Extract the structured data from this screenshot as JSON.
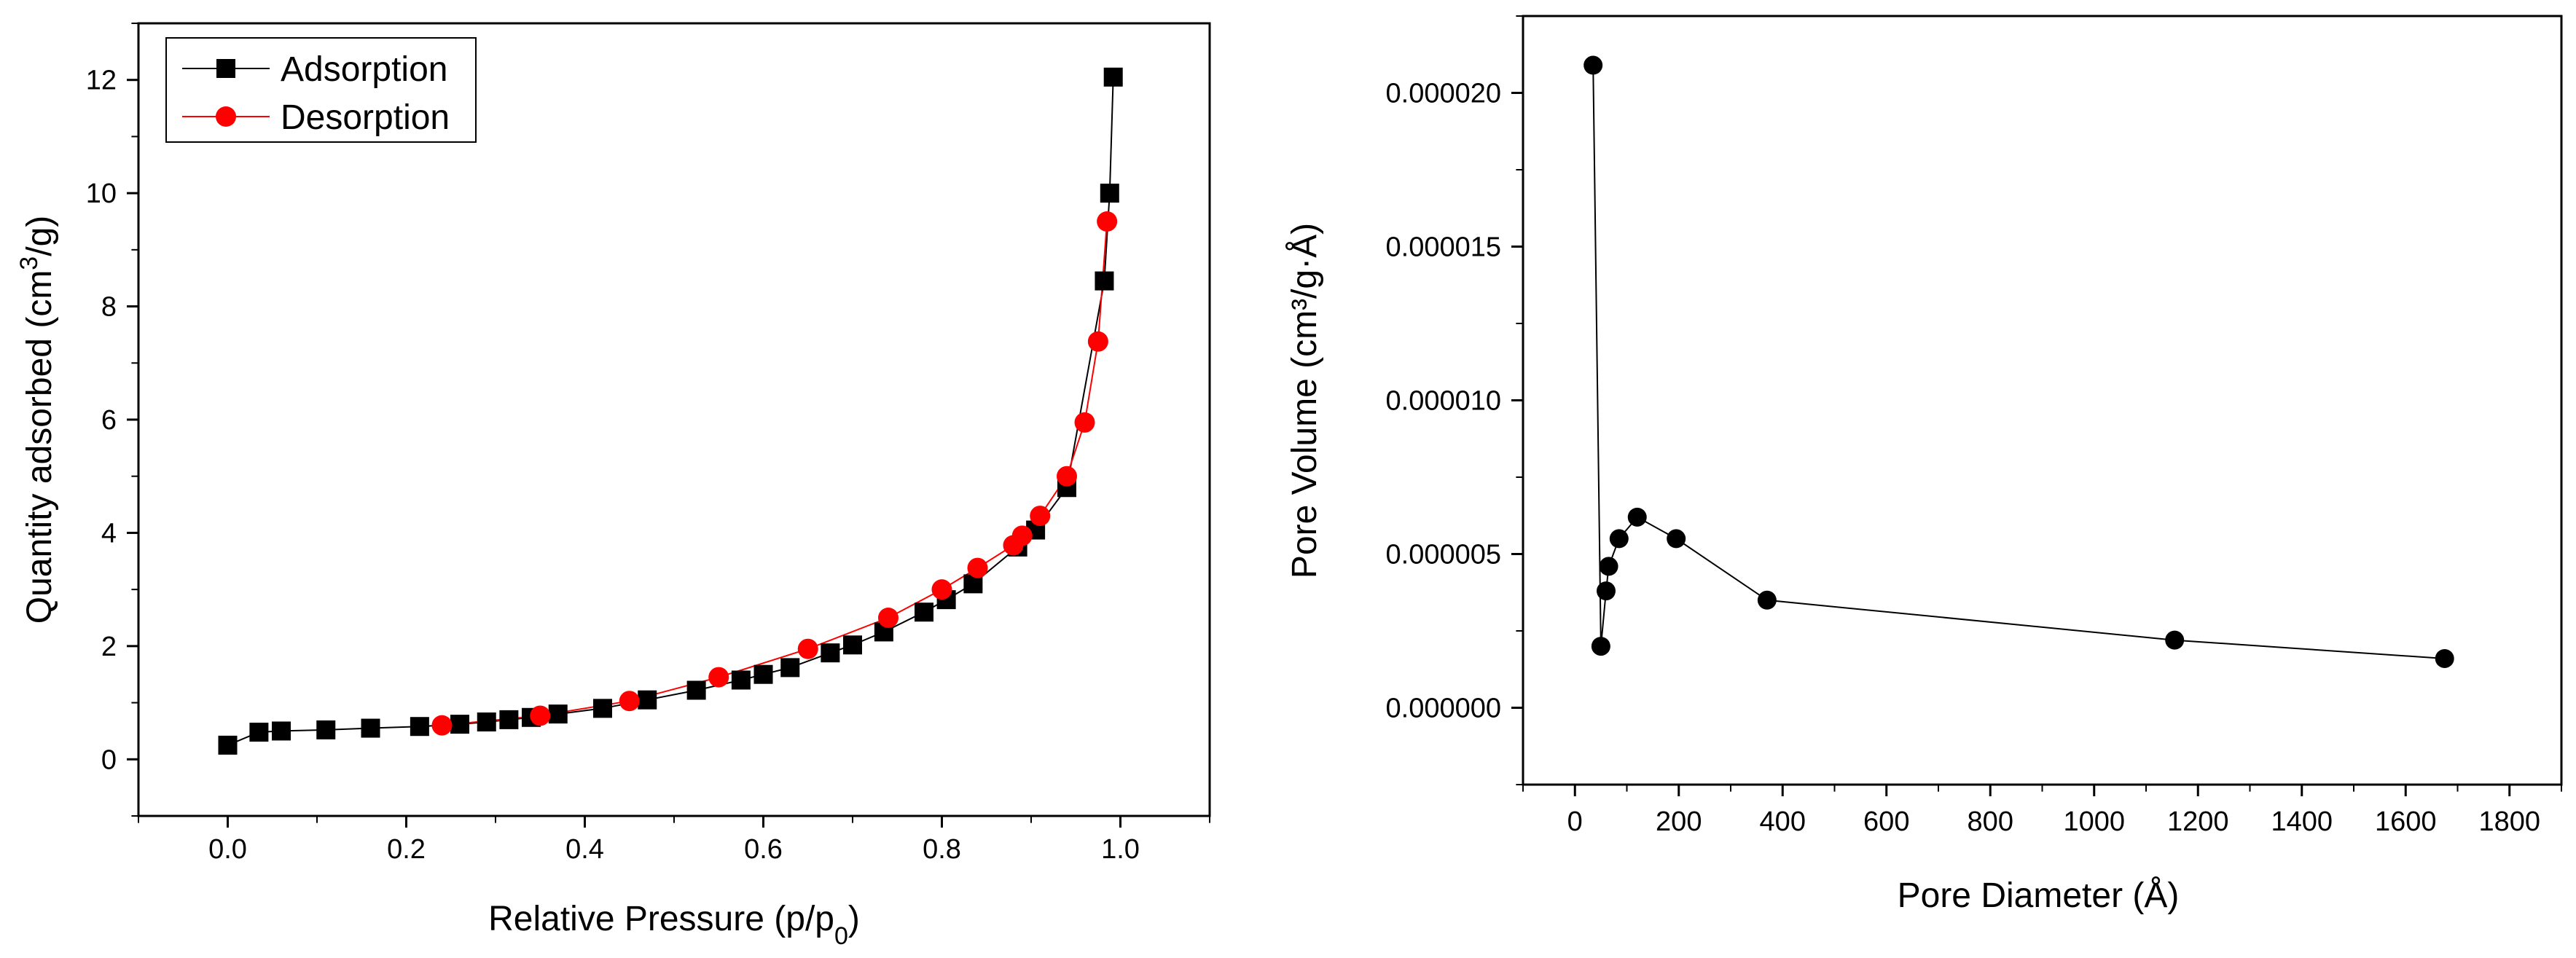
{
  "chart_data": [
    {
      "type": "line",
      "title": "",
      "xlabel": "Relative Pressure (p/p",
      "xlabel_sub": "0",
      "xlabel_close": ")",
      "ylabel_pre": "Quantity adsorbed (cm",
      "ylabel_sup": "3",
      "ylabel_post": "/g)",
      "xlim": [
        -0.1,
        1.1
      ],
      "ylim": [
        -1,
        13
      ],
      "xticks": [
        0.0,
        0.2,
        0.4,
        0.6,
        0.8,
        1.0
      ],
      "xtick_labels": [
        "0.0",
        "0.2",
        "0.4",
        "0.6",
        "0.8",
        "1.0"
      ],
      "yticks": [
        0,
        2,
        4,
        6,
        8,
        10,
        12
      ],
      "ytick_labels": [
        "0",
        "2",
        "4",
        "6",
        "8",
        "10",
        "12"
      ],
      "legend": {
        "placement": "top-left",
        "entries": [
          "Adsorption",
          "Desorption"
        ]
      },
      "series": [
        {
          "name": "Adsorption",
          "color": "#000000",
          "marker": "square",
          "x": [
            0.0,
            0.035,
            0.06,
            0.11,
            0.16,
            0.215,
            0.26,
            0.29,
            0.315,
            0.34,
            0.37,
            0.42,
            0.47,
            0.525,
            0.575,
            0.6,
            0.63,
            0.675,
            0.7,
            0.735,
            0.78,
            0.805,
            0.835,
            0.885,
            0.905,
            0.94,
            0.982,
            0.988,
            0.992
          ],
          "y": [
            0.25,
            0.48,
            0.5,
            0.52,
            0.55,
            0.58,
            0.62,
            0.66,
            0.7,
            0.74,
            0.8,
            0.9,
            1.05,
            1.22,
            1.4,
            1.5,
            1.62,
            1.88,
            2.02,
            2.25,
            2.6,
            2.82,
            3.1,
            3.75,
            4.05,
            4.8,
            8.45,
            10.0,
            12.05
          ]
        },
        {
          "name": "Desorption",
          "color": "#ff0000",
          "marker": "circle",
          "x": [
            0.24,
            0.35,
            0.45,
            0.55,
            0.65,
            0.74,
            0.8,
            0.84,
            0.88,
            0.89,
            0.91,
            0.94,
            0.96,
            0.975,
            0.985
          ],
          "y": [
            0.6,
            0.77,
            1.03,
            1.45,
            1.95,
            2.5,
            3.0,
            3.38,
            3.78,
            3.95,
            4.3,
            5.0,
            5.95,
            7.38,
            9.5
          ]
        }
      ]
    },
    {
      "type": "line",
      "title": "",
      "xlabel": "Pore Diameter (Å)",
      "ylabel": "Pore Volume (cm³/g·Å)",
      "xlim": [
        -100,
        1900
      ],
      "ylim": [
        -2.5e-06,
        2.25e-05
      ],
      "xticks": [
        0,
        200,
        400,
        600,
        800,
        1000,
        1200,
        1400,
        1600,
        1800
      ],
      "xtick_labels": [
        "0",
        "200",
        "400",
        "600",
        "800",
        "1000",
        "1200",
        "1400",
        "1600",
        "1800"
      ],
      "yticks": [
        0.0,
        5e-06,
        1e-05,
        1.5e-05,
        2e-05
      ],
      "ytick_labels": [
        "0.000000",
        "0.000005",
        "0.000010",
        "0.000015",
        "0.000020"
      ],
      "series": [
        {
          "name": "Pore Volume",
          "color": "#000000",
          "marker": "circle",
          "x": [
            35,
            50,
            60,
            65,
            85,
            120,
            195,
            370,
            1155,
            1675
          ],
          "y": [
            2.09e-05,
            2e-06,
            3.8e-06,
            4.6e-06,
            5.5e-06,
            6.2e-06,
            5.5e-06,
            3.5e-06,
            2.2e-06,
            1.6e-06
          ]
        }
      ]
    }
  ]
}
